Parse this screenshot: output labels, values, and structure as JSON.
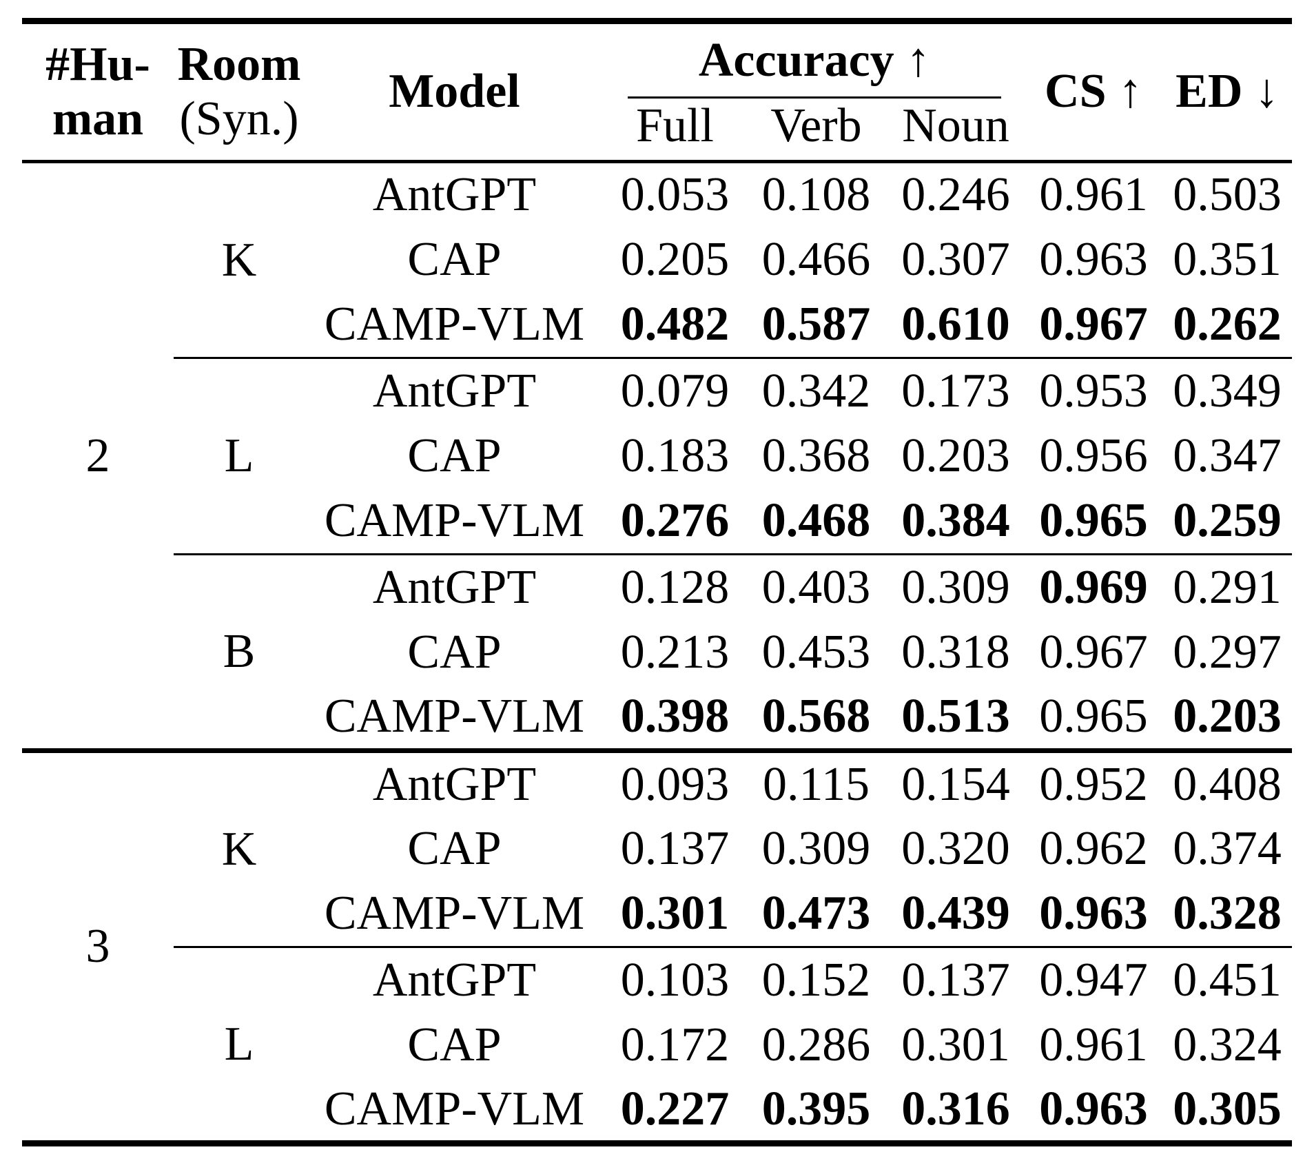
{
  "table": {
    "headers": {
      "human": {
        "line1": "#Hu-",
        "line2": "man"
      },
      "room": {
        "line1": "Room",
        "line2": "(Syn.)"
      },
      "model": "Model",
      "accuracy": "Accuracy ↑",
      "sub": {
        "full": "Full",
        "verb": "Verb",
        "noun": "Noun"
      },
      "cs": "CS ↑",
      "ed": "ED ↓"
    },
    "groups": [
      {
        "human_label": "2",
        "subgroups": [
          {
            "room_label": "K",
            "rows": [
              {
                "model": "AntGPT",
                "values": [
                  "0.053",
                  "0.108",
                  "0.246",
                  "0.961",
                  "0.503"
                ],
                "bold": [
                  false,
                  false,
                  false,
                  false,
                  false
                ]
              },
              {
                "model": "CAP",
                "values": [
                  "0.205",
                  "0.466",
                  "0.307",
                  "0.963",
                  "0.351"
                ],
                "bold": [
                  false,
                  false,
                  false,
                  false,
                  false
                ]
              },
              {
                "model": "CAMP-VLM",
                "values": [
                  "0.482",
                  "0.587",
                  "0.610",
                  "0.967",
                  "0.262"
                ],
                "bold": [
                  true,
                  true,
                  true,
                  true,
                  true
                ]
              }
            ]
          },
          {
            "room_label": "L",
            "rows": [
              {
                "model": "AntGPT",
                "values": [
                  "0.079",
                  "0.342",
                  "0.173",
                  "0.953",
                  "0.349"
                ],
                "bold": [
                  false,
                  false,
                  false,
                  false,
                  false
                ]
              },
              {
                "model": "CAP",
                "values": [
                  "0.183",
                  "0.368",
                  "0.203",
                  "0.956",
                  "0.347"
                ],
                "bold": [
                  false,
                  false,
                  false,
                  false,
                  false
                ]
              },
              {
                "model": "CAMP-VLM",
                "values": [
                  "0.276",
                  "0.468",
                  "0.384",
                  "0.965",
                  "0.259"
                ],
                "bold": [
                  true,
                  true,
                  true,
                  true,
                  true
                ]
              }
            ]
          },
          {
            "room_label": "B",
            "rows": [
              {
                "model": "AntGPT",
                "values": [
                  "0.128",
                  "0.403",
                  "0.309",
                  "0.969",
                  "0.291"
                ],
                "bold": [
                  false,
                  false,
                  false,
                  true,
                  false
                ]
              },
              {
                "model": "CAP",
                "values": [
                  "0.213",
                  "0.453",
                  "0.318",
                  "0.967",
                  "0.297"
                ],
                "bold": [
                  false,
                  false,
                  false,
                  false,
                  false
                ]
              },
              {
                "model": "CAMP-VLM",
                "values": [
                  "0.398",
                  "0.568",
                  "0.513",
                  "0.965",
                  "0.203"
                ],
                "bold": [
                  true,
                  true,
                  true,
                  false,
                  true
                ]
              }
            ]
          }
        ]
      },
      {
        "human_label": "3",
        "subgroups": [
          {
            "room_label": "K",
            "rows": [
              {
                "model": "AntGPT",
                "values": [
                  "0.093",
                  "0.115",
                  "0.154",
                  "0.952",
                  "0.408"
                ],
                "bold": [
                  false,
                  false,
                  false,
                  false,
                  false
                ]
              },
              {
                "model": "CAP",
                "values": [
                  "0.137",
                  "0.309",
                  "0.320",
                  "0.962",
                  "0.374"
                ],
                "bold": [
                  false,
                  false,
                  false,
                  false,
                  false
                ]
              },
              {
                "model": "CAMP-VLM",
                "values": [
                  "0.301",
                  "0.473",
                  "0.439",
                  "0.963",
                  "0.328"
                ],
                "bold": [
                  true,
                  true,
                  true,
                  true,
                  true
                ]
              }
            ]
          },
          {
            "room_label": "L",
            "rows": [
              {
                "model": "AntGPT",
                "values": [
                  "0.103",
                  "0.152",
                  "0.137",
                  "0.947",
                  "0.451"
                ],
                "bold": [
                  false,
                  false,
                  false,
                  false,
                  false
                ]
              },
              {
                "model": "CAP",
                "values": [
                  "0.172",
                  "0.286",
                  "0.301",
                  "0.961",
                  "0.324"
                ],
                "bold": [
                  false,
                  false,
                  false,
                  false,
                  false
                ]
              },
              {
                "model": "CAMP-VLM",
                "values": [
                  "0.227",
                  "0.395",
                  "0.316",
                  "0.963",
                  "0.305"
                ],
                "bold": [
                  true,
                  true,
                  true,
                  true,
                  true
                ]
              }
            ]
          }
        ]
      }
    ]
  }
}
